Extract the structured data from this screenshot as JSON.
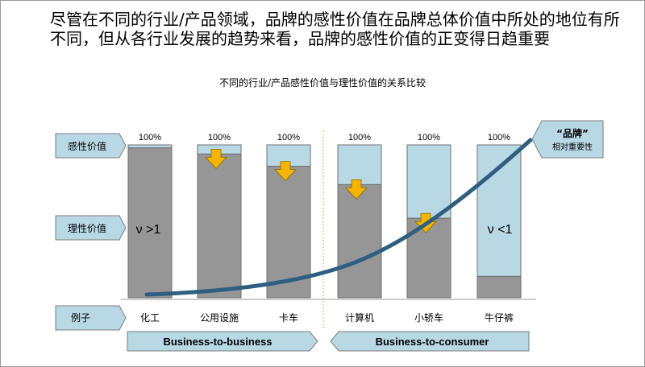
{
  "headline": "尽管在不同的行业/产品领域，品牌的感性价值在品牌总体价值中所处的地位有所不同，但从各行业发展的趋势来看，品牌的感性价值的正变得日趋重要",
  "colors": {
    "emotional": "#b8d8e4",
    "rational": "#969696",
    "curve": "#2f5f80",
    "arrow": "#f5b400",
    "arrow_stroke": "#8a6a00",
    "label_box": "#b8d8e4",
    "divider": "#e8a860"
  },
  "labels": {
    "emotional": "感性价值",
    "rational": "理性价值",
    "example": "例子"
  },
  "brand_callout": {
    "title": "“品牌”",
    "subtitle": "相对重要性"
  },
  "segments": {
    "b2b": "Business-to-business",
    "b2c": "Business-to-consumer"
  },
  "annotations": {
    "left": "ν >1",
    "right": "ν <1"
  },
  "chart_data": {
    "type": "bar",
    "title": "不同的行业/产品感性价值与理性价值的关系比较",
    "categories": [
      "化工",
      "公用设施",
      "卡车",
      "计算机",
      "小轿车",
      "牛仔裤"
    ],
    "top_labels": [
      "100%",
      "100%",
      "100%",
      "100%",
      "100%",
      "100%"
    ],
    "ylim": [
      0,
      100
    ],
    "series": [
      {
        "name": "理性价值",
        "values": [
          98,
          94,
          86,
          74,
          52,
          14
        ]
      },
      {
        "name": "感性价值",
        "values": [
          2,
          6,
          14,
          26,
          48,
          86
        ]
      }
    ],
    "trend_increasing": [
      false,
      true,
      true,
      true,
      true,
      false
    ]
  }
}
